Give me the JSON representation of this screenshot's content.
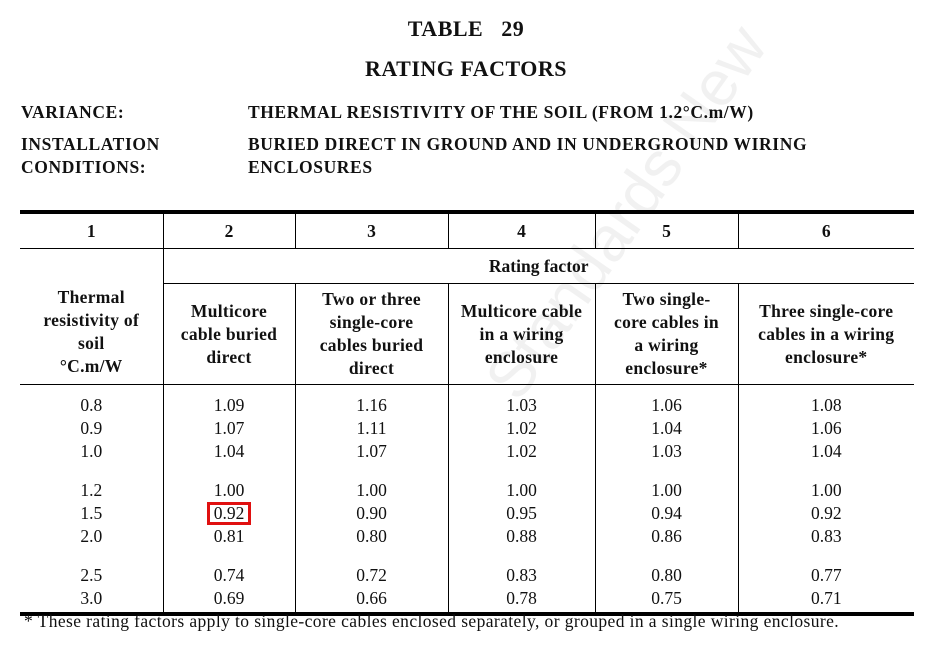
{
  "header": {
    "table_no": "TABLE   29",
    "title": "RATING FACTORS"
  },
  "variance": {
    "label": "VARIANCE:",
    "value": "THERMAL RESISTIVITY OF THE SOIL (FROM 1.2°C.m/W)"
  },
  "installation": {
    "label1": "INSTALLATION",
    "label2": "CONDITIONS:",
    "value1": "BURIED DIRECT IN GROUND AND IN UNDERGROUND WIRING",
    "value2": "ENCLOSURES"
  },
  "watermark": "Standards New",
  "table": {
    "col_numbers": [
      "1",
      "2",
      "3",
      "4",
      "5",
      "6"
    ],
    "group_header": "Rating factor",
    "headers": [
      [
        "Thermal",
        "resistivity of",
        "soil",
        "°C.m/W"
      ],
      [
        "Multicore",
        "cable buried",
        "direct"
      ],
      [
        "Two or three",
        "single-core",
        "cables buried",
        "direct"
      ],
      [
        "Multicore cable",
        "in a wiring",
        "enclosure"
      ],
      [
        "Two single-",
        "core cables in",
        "a wiring",
        "enclosure*"
      ],
      [
        "Three single-core",
        "cables in a wiring",
        "enclosure*"
      ]
    ],
    "groups": [
      [
        [
          "0.8",
          "1.09",
          "1.16",
          "1.03",
          "1.06",
          "1.08"
        ],
        [
          "0.9",
          "1.07",
          "1.11",
          "1.02",
          "1.04",
          "1.06"
        ],
        [
          "1.0",
          "1.04",
          "1.07",
          "1.02",
          "1.03",
          "1.04"
        ]
      ],
      [
        [
          "1.2",
          "1.00",
          "1.00",
          "1.00",
          "1.00",
          "1.00"
        ],
        [
          "1.5",
          "0.92",
          "0.90",
          "0.95",
          "0.94",
          "0.92"
        ],
        [
          "2.0",
          "0.81",
          "0.80",
          "0.88",
          "0.86",
          "0.83"
        ]
      ],
      [
        [
          "2.5",
          "0.74",
          "0.72",
          "0.83",
          "0.80",
          "0.77"
        ],
        [
          "3.0",
          "0.69",
          "0.66",
          "0.78",
          "0.75",
          "0.71"
        ]
      ]
    ],
    "highlight": {
      "group": 1,
      "row": 1,
      "col": 1,
      "color": "#e01010"
    }
  },
  "footnote": "* These rating factors apply to single-core cables enclosed separately, or grouped in a single wiring enclosure."
}
